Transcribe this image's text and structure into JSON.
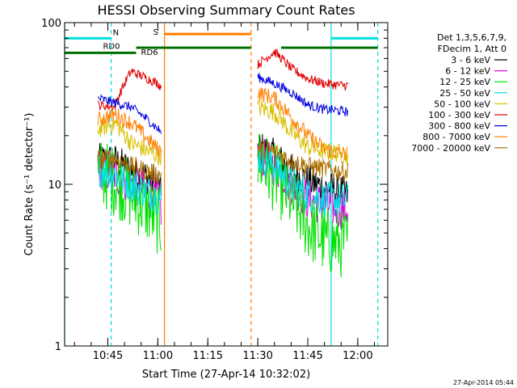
{
  "chart_data": {
    "type": "line",
    "title": "HESSI Observing Summary Count Rates",
    "xlabel": "Start Time (27-Apr-14 10:32:02)",
    "ylabel": "Count Rate (s⁻¹ detector⁻¹)",
    "x_scale": "time",
    "y_scale": "log",
    "xlim": [
      "10:32:02",
      "12:09:00"
    ],
    "ylim": [
      1,
      100
    ],
    "x_ticks": [
      "10:45",
      "11:00",
      "11:15",
      "11:30",
      "11:45",
      "12:00"
    ],
    "y_ticks": [
      "1",
      "10",
      "100"
    ],
    "grid": false,
    "legend_position": "right",
    "legend_header": [
      "Det 1,3,5,6,7,9,",
      "FDecim 1, Att 0"
    ],
    "series": [
      {
        "name": "3 - 6 keV",
        "color": "#000000",
        "x": [
          "10:42",
          "10:47",
          "10:52",
          "10:57",
          "11:00",
          "11:01",
          "11:30",
          "11:35",
          "11:40",
          "11:45",
          "11:50",
          "11:55",
          "11:57"
        ],
        "y": [
          14,
          14,
          12,
          11,
          10,
          8.5,
          17,
          15,
          12,
          10.5,
          9.5,
          9,
          8.5
        ]
      },
      {
        "name": "6 - 12 keV",
        "color": "#e000e0",
        "x": [
          "10:42",
          "10:47",
          "10:52",
          "10:57",
          "11:00",
          "11:01",
          "11:30",
          "11:35",
          "11:40",
          "11:45",
          "11:50",
          "11:55",
          "11:57"
        ],
        "y": [
          12.5,
          11.5,
          10,
          9,
          8,
          7,
          15,
          13,
          10,
          8,
          7.5,
          7,
          7
        ]
      },
      {
        "name": "12 - 25 keV",
        "color": "#00e000",
        "x": [
          "10:42",
          "10:47",
          "10:52",
          "10:57",
          "11:00",
          "11:01",
          "11:30",
          "11:35",
          "11:40",
          "11:45",
          "11:50",
          "11:55",
          "11:57"
        ],
        "y": [
          12,
          10.5,
          8.5,
          7,
          6,
          5.5,
          14,
          11,
          8,
          5.5,
          4.5,
          4.3,
          4.3
        ]
      },
      {
        "name": "25 - 50 keV",
        "color": "#00e0e0",
        "x": [
          "10:42",
          "10:47",
          "10:52",
          "10:57",
          "11:00",
          "11:01",
          "11:30",
          "11:35",
          "11:40",
          "11:45",
          "11:50",
          "11:55",
          "11:57"
        ],
        "y": [
          12.5,
          11.5,
          10,
          9,
          8.3,
          8,
          15,
          13,
          10,
          8.6,
          8.1,
          8,
          8
        ]
      },
      {
        "name": "50 - 100 keV",
        "color": "#d8c000",
        "x": [
          "10:42",
          "10:47",
          "10:52",
          "10:57",
          "11:00",
          "11:01",
          "11:30",
          "11:35",
          "11:40",
          "11:45",
          "11:50",
          "11:55",
          "11:57"
        ],
        "y": [
          22,
          24,
          18,
          16,
          15,
          15,
          30,
          28,
          21,
          17,
          16,
          15.5,
          15
        ]
      },
      {
        "name": "100 - 300 keV",
        "color": "#e00000",
        "x": [
          "10:42",
          "10:47",
          "10:52",
          "10:57",
          "11:00",
          "11:01",
          "11:30",
          "11:35",
          "11:40",
          "11:45",
          "11:50",
          "11:55",
          "11:57"
        ],
        "y": [
          31,
          30,
          50,
          45,
          42,
          40,
          55,
          66,
          52,
          45,
          42,
          41,
          41
        ]
      },
      {
        "name": "300 - 800 keV",
        "color": "#0000e0",
        "x": [
          "10:42",
          "10:47",
          "10:52",
          "10:57",
          "11:00",
          "11:01",
          "11:30",
          "11:35",
          "11:40",
          "11:45",
          "11:50",
          "11:55",
          "11:57"
        ],
        "y": [
          34,
          32,
          30,
          25,
          22,
          21,
          46,
          42,
          37,
          31,
          29,
          28.5,
          28
        ]
      },
      {
        "name": "800 - 7000 keV",
        "color": "#ff8000",
        "x": [
          "10:42",
          "10:47",
          "10:52",
          "10:57",
          "11:00",
          "11:01",
          "11:30",
          "11:35",
          "11:40",
          "11:45",
          "11:50",
          "11:55",
          "11:57"
        ],
        "y": [
          25,
          27,
          24,
          19,
          16.5,
          16,
          37,
          34,
          26,
          20,
          16.5,
          15.5,
          15.5
        ]
      },
      {
        "name": "7000 - 20000 keV",
        "color": "#b07000",
        "x": [
          "10:42",
          "10:47",
          "10:52",
          "10:57",
          "11:00",
          "11:01",
          "11:30",
          "11:35",
          "11:40",
          "11:45",
          "11:50",
          "11:55",
          "11:57"
        ],
        "y": [
          14.5,
          14.5,
          13,
          12,
          11.5,
          11.5,
          16.5,
          16,
          14,
          13,
          12.5,
          12,
          12
        ]
      }
    ],
    "annotations": {
      "vertical_lines": [
        {
          "x": "10:32:02",
          "color": "#00e0e0",
          "style": "solid"
        },
        {
          "x": "10:46",
          "color": "#00e0e0",
          "style": "dashed"
        },
        {
          "x": "11:02",
          "color": "#ff8000",
          "style": "solid"
        },
        {
          "x": "11:28",
          "color": "#ff8000",
          "style": "dashed"
        },
        {
          "x": "11:52",
          "color": "#00e0e0",
          "style": "solid"
        },
        {
          "x": "12:06",
          "color": "#00e0e0",
          "style": "dashed"
        }
      ],
      "bars": [
        {
          "label": "N",
          "color": "#00e0e0",
          "segments": [
            [
              "10:32:02",
              "10:46"
            ],
            [
              "11:52",
              "12:06"
            ]
          ],
          "level": 80
        },
        {
          "label": "S",
          "color": "#ff8000",
          "segments": [
            [
              "11:02",
              "11:28"
            ]
          ],
          "level": 85
        },
        {
          "label": "RD0",
          "color": "#007000",
          "segments": [
            [
              "10:32:02",
              "10:53:30"
            ]
          ],
          "level": 65
        },
        {
          "label": "RD6",
          "color": "#007000",
          "segments": [
            [
              "10:53:30",
              "11:28"
            ],
            [
              "11:37",
              "12:06"
            ]
          ],
          "level": 70
        }
      ]
    },
    "timestamp": "27-Apr-2014 05:44"
  }
}
